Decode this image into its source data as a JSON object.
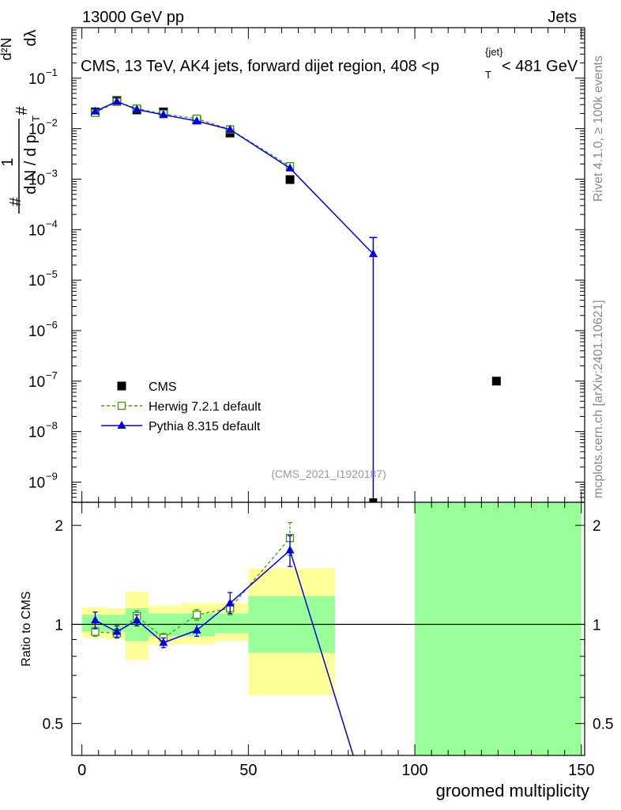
{
  "header": {
    "left": "13000 GeV pp",
    "right": "Jets"
  },
  "side_labels": {
    "rivet": "Rivet 4.1.0, ≥ 100k events",
    "mcplots": "mcplots.cern.ch [arXiv:2401.10621]"
  },
  "chart_data": [
    {
      "type": "scatter",
      "panel": "main",
      "title": "CMS, 13 TeV, AK4 jets, forward dijet region, 408 <p_T^{jet}< 481 GeV",
      "title_parts": {
        "main": "CMS, 13 TeV, AK4 jets, forward dijet region, 408 <p",
        "sub": "T",
        "sup": "{jet}",
        "tail": "< 481 GeV"
      },
      "ylabel": "1/N dN/dp_T dλ  (# / d p_T dλ)",
      "ylabel_parts": {
        "one": "1",
        "num": "d²N",
        "den": "d N / d p",
        "den_sub": "T",
        "dl": "dλ",
        "hash": "#"
      },
      "xlabel": "groomed multiplicity",
      "xlim": [
        -3,
        151
      ],
      "ylim_log10": [
        -9.4,
        0.0
      ],
      "yscale": "log",
      "yticks": [
        {
          "exp": -1,
          "label": "10",
          "sup": "−1"
        },
        {
          "exp": -2,
          "label": "10",
          "sup": "−2"
        },
        {
          "exp": -3,
          "label": "10",
          "sup": "−3"
        },
        {
          "exp": -4,
          "label": "10",
          "sup": "−4"
        },
        {
          "exp": -5,
          "label": "10",
          "sup": "−5"
        },
        {
          "exp": -6,
          "label": "10",
          "sup": "−6"
        },
        {
          "exp": -7,
          "label": "10",
          "sup": "−7"
        },
        {
          "exp": -8,
          "label": "10",
          "sup": "−8"
        },
        {
          "exp": -9,
          "label": "10",
          "sup": "−9"
        }
      ],
      "watermark": "(CMS_2021_I1920187)",
      "legend": {
        "position": "bottom-left",
        "entries": [
          {
            "label": "CMS",
            "series": "CMS"
          },
          {
            "label": "Herwig 7.2.1 default",
            "series": "Herwig"
          },
          {
            "label": "Pythia 8.315 default",
            "series": "Pythia"
          }
        ]
      },
      "series": [
        {
          "name": "CMS",
          "color": "#000000",
          "marker": "square",
          "points": [
            {
              "x": 4,
              "y": 0.0215
            },
            {
              "x": 10.5,
              "y": 0.036
            },
            {
              "x": 16.5,
              "y": 0.0235
            },
            {
              "x": 24.5,
              "y": 0.0215
            },
            {
              "x": 34.5,
              "y": 0.0148
            },
            {
              "x": 44.5,
              "y": 0.0082
            },
            {
              "x": 62.5,
              "y": 0.00098
            },
            {
              "x": 124.5,
              "y": 1e-07
            }
          ]
        },
        {
          "name": "Herwig",
          "color": "#4a9a1a",
          "marker": "open-square",
          "line": "dashed",
          "points": [
            {
              "x": 4,
              "y": 0.0205
            },
            {
              "x": 10.5,
              "y": 0.034
            },
            {
              "x": 16.5,
              "y": 0.025
            },
            {
              "x": 24.5,
              "y": 0.0195
            },
            {
              "x": 34.5,
              "y": 0.0158
            },
            {
              "x": 44.5,
              "y": 0.0097
            },
            {
              "x": 62.5,
              "y": 0.0018
            }
          ]
        },
        {
          "name": "Pythia",
          "color": "#0000dd",
          "marker": "triangle",
          "line": "solid",
          "points": [
            {
              "x": 4,
              "y": 0.022
            },
            {
              "x": 10.5,
              "y": 0.0345
            },
            {
              "x": 16.5,
              "y": 0.024
            },
            {
              "x": 24.5,
              "y": 0.0188
            },
            {
              "x": 34.5,
              "y": 0.0142
            },
            {
              "x": 44.5,
              "y": 0.0096
            },
            {
              "x": 62.5,
              "y": 0.00165
            },
            {
              "x": 87.5,
              "y": 3.3e-05,
              "err_up": 7e-05,
              "err_down_to_axis": true
            }
          ]
        }
      ],
      "extra_markers": [
        {
          "series": "CMS",
          "x": 87.5,
          "at": "axis-bottom"
        }
      ]
    },
    {
      "type": "scatter",
      "panel": "ratio",
      "ylabel": "Ratio to CMS",
      "xlabel": "groomed multiplicity",
      "xlim": [
        -3,
        151
      ],
      "ylim": [
        0.4,
        2.35
      ],
      "yscale": "log",
      "yticks": [
        {
          "v": 0.5,
          "label": "0.5"
        },
        {
          "v": 1,
          "label": "1"
        },
        {
          "v": 2,
          "label": "2"
        }
      ],
      "xticks": [
        {
          "v": 0,
          "label": "0"
        },
        {
          "v": 50,
          "label": "50"
        },
        {
          "v": 100,
          "label": "100"
        },
        {
          "v": 150,
          "label": "150"
        }
      ],
      "bands": [
        {
          "x0": 0,
          "x1": 7,
          "y1_lo": 0.91,
          "y1_hi": 1.13,
          "y2_lo": 0.95,
          "y2_hi": 1.07
        },
        {
          "x0": 7,
          "x1": 13,
          "y1_lo": 0.9,
          "y1_hi": 1.12,
          "y2_lo": 0.95,
          "y2_hi": 1.07
        },
        {
          "x0": 13,
          "x1": 20,
          "y1_lo": 0.78,
          "y1_hi": 1.26,
          "y2_lo": 0.89,
          "y2_hi": 1.12
        },
        {
          "x0": 20,
          "x1": 30,
          "y1_lo": 0.87,
          "y1_hi": 1.14,
          "y2_lo": 0.92,
          "y2_hi": 1.08
        },
        {
          "x0": 30,
          "x1": 40,
          "y1_lo": 0.87,
          "y1_hi": 1.16,
          "y2_lo": 0.92,
          "y2_hi": 1.08
        },
        {
          "x0": 40,
          "x1": 50,
          "y1_lo": 0.89,
          "y1_hi": 1.16,
          "y2_lo": 0.94,
          "y2_hi": 1.08
        },
        {
          "x0": 50,
          "x1": 76,
          "y1_lo": 0.61,
          "y1_hi": 1.48,
          "y2_lo": 0.82,
          "y2_hi": 1.22
        },
        {
          "x0": 100,
          "x1": 150,
          "y1_lo": 0.4,
          "y1_hi": 2.35,
          "y2_lo": 0.4,
          "y2_hi": 2.35
        }
      ],
      "band_colors": {
        "outer": "#ffff99",
        "inner": "#99ff99"
      },
      "reference_line": 1,
      "series": [
        {
          "name": "Herwig",
          "color": "#4a9a1a",
          "marker": "open-square",
          "line": "dashed",
          "points": [
            {
              "x": 4,
              "y": 0.95,
              "lo": 0.92,
              "hi": 0.98
            },
            {
              "x": 10.5,
              "y": 0.94,
              "lo": 0.91,
              "hi": 0.97
            },
            {
              "x": 16.5,
              "y": 1.06,
              "lo": 1.02,
              "hi": 1.1
            },
            {
              "x": 24.5,
              "y": 0.91,
              "lo": 0.88,
              "hi": 0.94
            },
            {
              "x": 34.5,
              "y": 1.07,
              "lo": 1.03,
              "hi": 1.11
            },
            {
              "x": 44.5,
              "y": 1.12,
              "lo": 1.07,
              "hi": 1.17
            },
            {
              "x": 62.5,
              "y": 1.83,
              "lo": 1.62,
              "hi": 2.04
            }
          ]
        },
        {
          "name": "Pythia",
          "color": "#0000dd",
          "marker": "triangle",
          "line": "solid",
          "points": [
            {
              "x": 4,
              "y": 1.03,
              "lo": 0.97,
              "hi": 1.09
            },
            {
              "x": 10.5,
              "y": 0.95,
              "lo": 0.91,
              "hi": 0.99
            },
            {
              "x": 16.5,
              "y": 1.03,
              "lo": 0.99,
              "hi": 1.07
            },
            {
              "x": 24.5,
              "y": 0.88,
              "lo": 0.85,
              "hi": 0.91
            },
            {
              "x": 34.5,
              "y": 0.96,
              "lo": 0.92,
              "hi": 1.0
            },
            {
              "x": 44.5,
              "y": 1.16,
              "lo": 1.08,
              "hi": 1.25
            },
            {
              "x": 62.5,
              "y": 1.68,
              "lo": 1.5,
              "hi": 1.86
            },
            {
              "x": 81.5,
              "y": 0.4,
              "offscale": true
            }
          ]
        }
      ]
    }
  ]
}
